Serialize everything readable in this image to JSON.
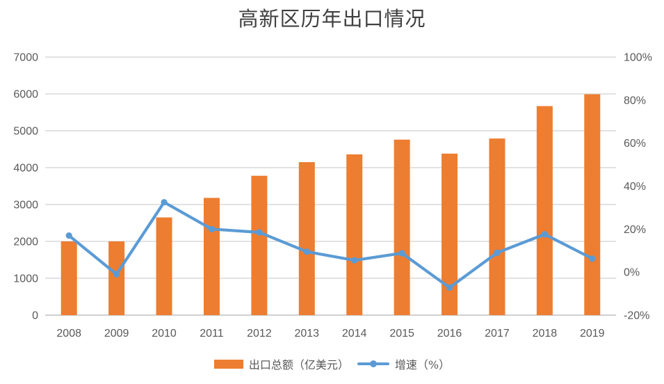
{
  "colors": {
    "background": "#FFFFFF",
    "bar": "#ED7D31",
    "line": "#5B9BD5",
    "grid": "#D9D9D9",
    "axis_line": "#BFBFBF",
    "axis_text": "#595959",
    "title_text": "#404040"
  },
  "chart_data": {
    "type": "combo",
    "title": "高新区历年出口情况",
    "categories": [
      "2008",
      "2009",
      "2010",
      "2011",
      "2012",
      "2013",
      "2014",
      "2015",
      "2016",
      "2017",
      "2018",
      "2019"
    ],
    "series": [
      {
        "name": "出口总额（亿美元）",
        "type": "bar",
        "axis": "left",
        "color": "#ED7D31",
        "values": [
          2000,
          2000,
          2650,
          3180,
          3780,
          4150,
          4360,
          4760,
          4380,
          4790,
          5670,
          5990
        ]
      },
      {
        "name": "增速（%）",
        "type": "line",
        "axis": "right",
        "color": "#5B9BD5",
        "values": [
          17,
          -1,
          32.5,
          20,
          18.5,
          9.5,
          5.5,
          8.8,
          -7.2,
          9,
          17.6,
          6.3
        ]
      }
    ],
    "left_axis": {
      "min": 0,
      "max": 7000,
      "step": 1000,
      "tick_labels": [
        "0",
        "1000",
        "2000",
        "3000",
        "4000",
        "5000",
        "6000",
        "7000"
      ]
    },
    "right_axis": {
      "min": -20,
      "max": 100,
      "step": 20,
      "tick_labels": [
        "-20%",
        "0%",
        "20%",
        "40%",
        "60%",
        "80%",
        "100%"
      ]
    },
    "grid": true,
    "legend_position": "bottom"
  }
}
